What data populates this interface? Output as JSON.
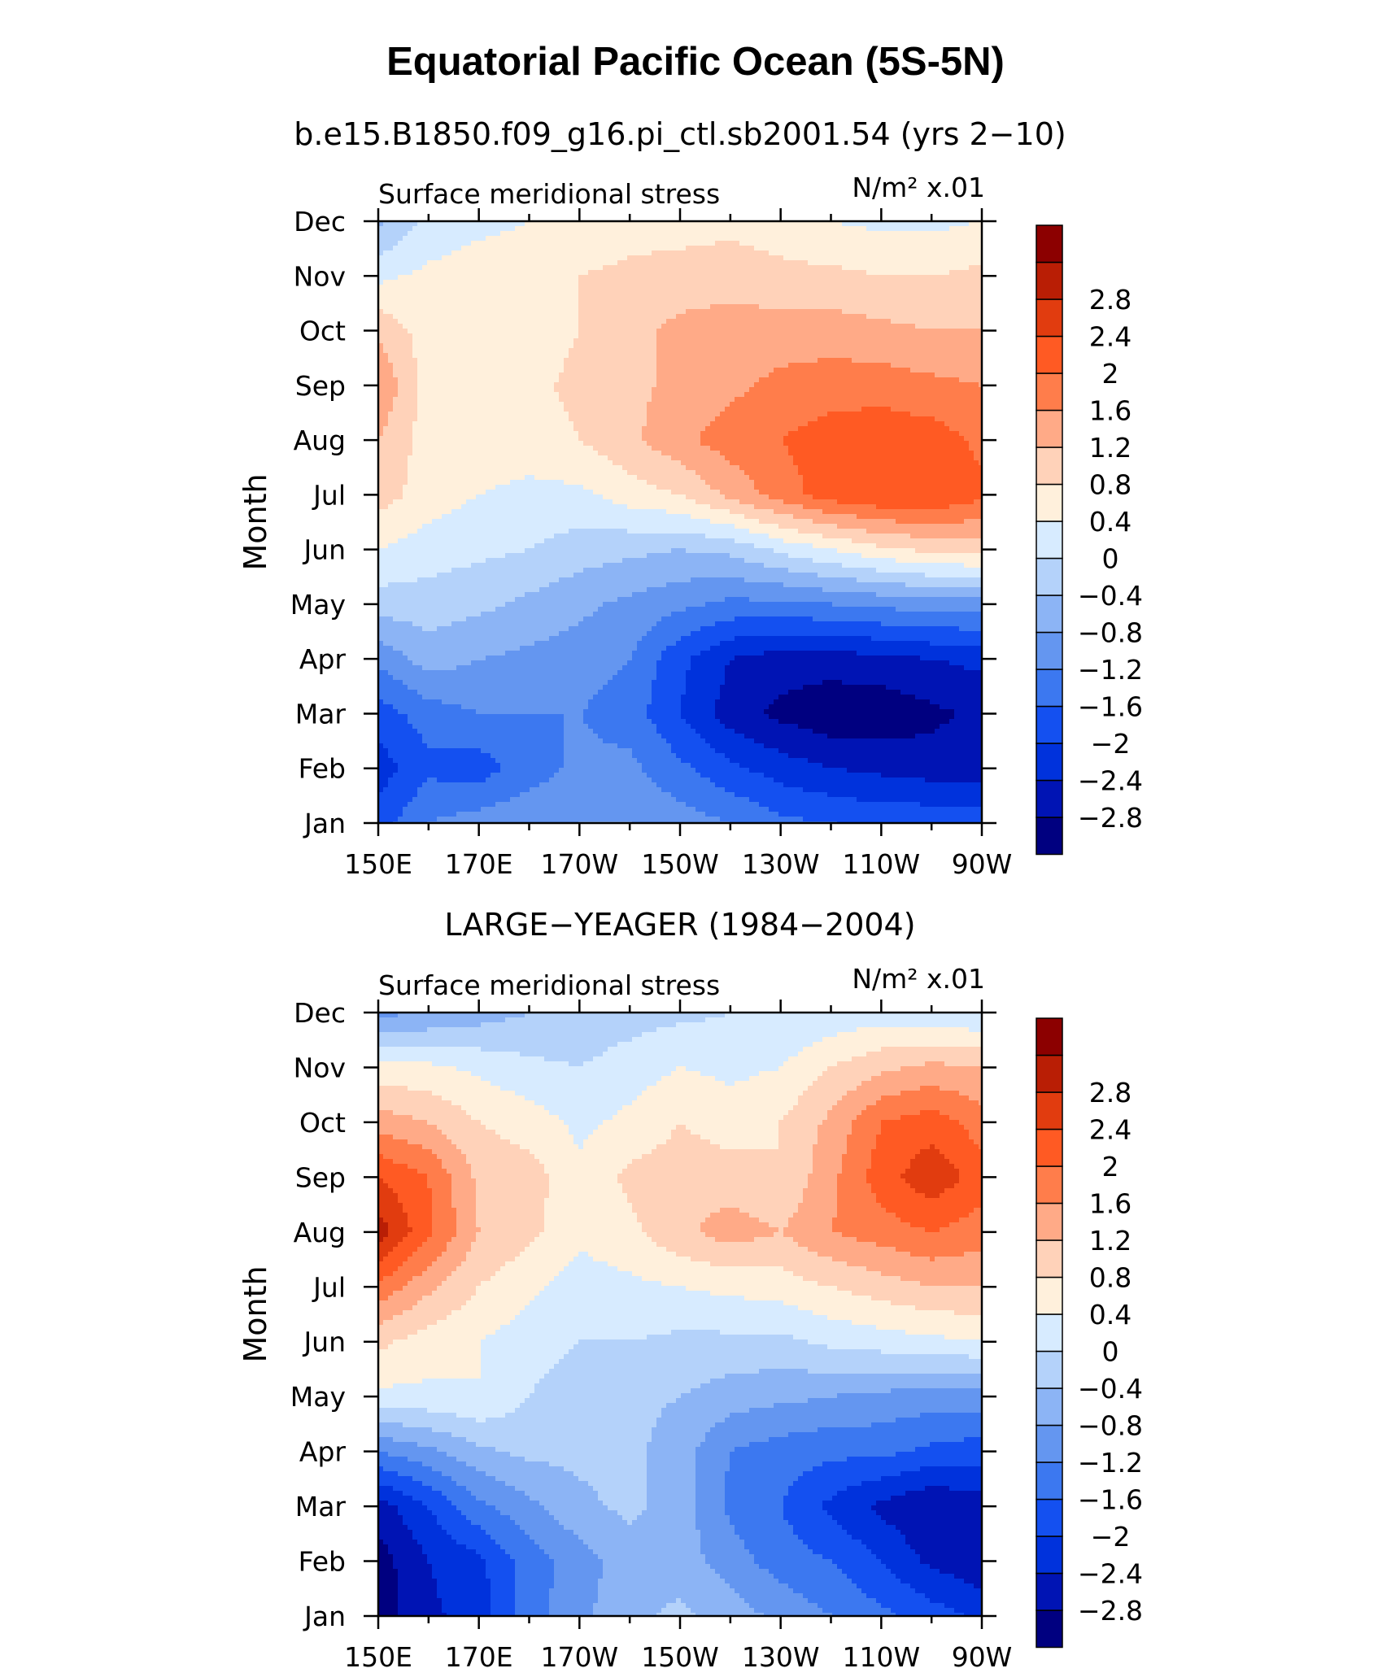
{
  "figure": {
    "title": "Equatorial Pacific Ocean (5S-5N)"
  },
  "palette": [
    "#000080",
    "#0014b4",
    "#0032dc",
    "#1450f0",
    "#3c78f0",
    "#6496f0",
    "#8cb4f5",
    "#b4d2fa",
    "#d7ebff",
    "#fff0dc",
    "#ffd2b9",
    "#ffaa87",
    "#ff7d4b",
    "#ff5a23",
    "#e13c0f",
    "#b91e05",
    "#8c0000"
  ],
  "chart_data": [
    {
      "type": "heatmap",
      "title": "b.e15.B1850.f09_g16.pi_ctl.sb2001.54 (yrs 2−10)",
      "left_label": "Surface meridional stress",
      "units": "N/m² x.01",
      "ylabel": "Month",
      "x_ticks": [
        "150E",
        "170E",
        "170W",
        "150W",
        "130W",
        "110W",
        "90W"
      ],
      "y_ticks": [
        "Jan",
        "Feb",
        "Mar",
        "Apr",
        "May",
        "Jun",
        "Jul",
        "Aug",
        "Sep",
        "Oct",
        "Nov",
        "Dec"
      ],
      "x_lon": [
        150,
        170,
        190,
        210,
        230,
        250,
        270
      ],
      "colorbar_labels": [
        "−2.8",
        "−2.4",
        "−2",
        "−1.6",
        "−1.2",
        "−0.8",
        "−0.4",
        "0",
        "0.4",
        "0.8",
        "1.2",
        "1.6",
        "2",
        "2.4",
        "2.8"
      ],
      "levels": [
        -2.8,
        -2.4,
        -2.0,
        -1.6,
        -1.2,
        -0.8,
        -0.4,
        0,
        0.4,
        0.8,
        1.2,
        1.6,
        2.0,
        2.4,
        2.8
      ],
      "z": [
        [
          -1.8,
          -1.2,
          -1.0,
          -0.9,
          -0.8,
          -0.8,
          -1.0,
          -1.2,
          -1.5,
          -1.6,
          -1.7,
          -1.7,
          -1.7
        ],
        [
          -2.2,
          -1.7,
          -1.8,
          -1.4,
          -1.1,
          -1.1,
          -1.5,
          -1.9,
          -2.2,
          -2.4,
          -2.5,
          -2.6,
          -2.6
        ],
        [
          -1.8,
          -1.4,
          -1.2,
          -1.2,
          -1.2,
          -1.4,
          -2.0,
          -2.6,
          -2.9,
          -3.1,
          -3.1,
          -2.9,
          -2.7
        ],
        [
          -1.1,
          -0.6,
          -0.8,
          -0.9,
          -1.0,
          -1.2,
          -1.9,
          -2.4,
          -2.6,
          -2.6,
          -2.5,
          -2.4,
          -2.3
        ],
        [
          -0.2,
          -0.2,
          -0.3,
          -0.5,
          -0.7,
          -0.9,
          -1.1,
          -1.3,
          -1.3,
          -1.2,
          -1.1,
          -1.0,
          -1.0
        ],
        [
          0.4,
          0.2,
          0.1,
          0.0,
          -0.2,
          -0.3,
          -0.4,
          -0.3,
          0.1,
          0.4,
          0.7,
          0.9,
          1.0
        ],
        [
          1.0,
          0.6,
          0.4,
          0.3,
          0.3,
          0.6,
          0.8,
          1.3,
          1.8,
          2.2,
          2.4,
          2.4,
          2.1
        ],
        [
          1.2,
          0.6,
          0.6,
          0.6,
          0.8,
          1.1,
          1.5,
          1.8,
          2.0,
          2.2,
          2.3,
          2.2,
          1.9
        ],
        [
          1.6,
          0.6,
          0.6,
          0.7,
          0.9,
          1.1,
          1.3,
          1.5,
          1.7,
          1.8,
          1.8,
          1.7,
          1.6
        ],
        [
          1.1,
          0.6,
          0.6,
          0.6,
          0.8,
          1.1,
          1.3,
          1.4,
          1.4,
          1.4,
          1.3,
          1.2,
          1.2
        ],
        [
          0.3,
          0.5,
          0.6,
          0.6,
          0.8,
          0.9,
          1.0,
          1.0,
          0.9,
          0.9,
          0.8,
          0.8,
          0.9
        ],
        [
          -0.5,
          0.1,
          0.3,
          0.4,
          0.5,
          0.6,
          0.6,
          0.7,
          0.6,
          0.4,
          0.3,
          0.3,
          0.4
        ]
      ]
    },
    {
      "type": "heatmap",
      "title": "LARGE−YEAGER (1984−2004)",
      "left_label": "Surface meridional stress",
      "units": "N/m² x.01",
      "ylabel": "Month",
      "x_ticks": [
        "150E",
        "170E",
        "170W",
        "150W",
        "130W",
        "110W",
        "90W"
      ],
      "y_ticks": [
        "Jan",
        "Feb",
        "Mar",
        "Apr",
        "May",
        "Jun",
        "Jul",
        "Aug",
        "Sep",
        "Oct",
        "Nov",
        "Dec"
      ],
      "x_lon": [
        150,
        170,
        190,
        210,
        230,
        250,
        270
      ],
      "colorbar_labels": [
        "−2.8",
        "−2.4",
        "−2",
        "−1.6",
        "−1.2",
        "−0.8",
        "−0.4",
        "0",
        "0.4",
        "0.8",
        "1.2",
        "1.6",
        "2",
        "2.4",
        "2.8"
      ],
      "levels": [
        -2.8,
        -2.4,
        -2.0,
        -1.6,
        -1.2,
        -0.8,
        -0.4,
        0,
        0.4,
        0.8,
        1.2,
        1.6,
        2.0,
        2.4,
        2.8
      ],
      "z": [
        [
          -3.0,
          -2.5,
          -2.2,
          -1.4,
          -0.9,
          -0.5,
          -0.3,
          -0.6,
          -0.9,
          -1.2,
          -1.5,
          -1.8,
          -2.1
        ],
        [
          -3.0,
          -2.4,
          -2.1,
          -1.4,
          -1.0,
          -0.6,
          -0.6,
          -1.0,
          -1.4,
          -1.6,
          -2.0,
          -2.5,
          -2.7
        ],
        [
          -2.6,
          -2.0,
          -1.3,
          -0.9,
          -0.5,
          -0.3,
          -0.6,
          -1.3,
          -1.6,
          -2.1,
          -2.5,
          -2.8,
          -2.6
        ],
        [
          -1.2,
          -0.9,
          -0.5,
          -0.3,
          -0.3,
          -0.3,
          -0.6,
          -1.2,
          -1.4,
          -1.5,
          -1.5,
          -1.7,
          -1.8
        ],
        [
          0.3,
          0.3,
          0.4,
          0.0,
          -0.3,
          -0.3,
          -0.4,
          -0.6,
          -0.7,
          -0.8,
          -0.9,
          -1.0,
          -1.0
        ],
        [
          0.9,
          0.6,
          0.4,
          0.2,
          0.0,
          0.0,
          -0.1,
          -0.1,
          -0.1,
          0.1,
          0.2,
          0.3,
          0.4
        ],
        [
          1.9,
          1.3,
          0.8,
          0.5,
          0.2,
          0.3,
          0.4,
          0.5,
          0.6,
          0.8,
          1.0,
          1.2,
          1.2
        ],
        [
          3.0,
          2.1,
          1.2,
          0.9,
          0.5,
          0.7,
          1.1,
          1.4,
          1.2,
          1.6,
          1.8,
          2.0,
          1.8
        ],
        [
          2.4,
          2.0,
          1.1,
          1.0,
          0.5,
          0.9,
          1.0,
          1.0,
          0.8,
          1.5,
          2.2,
          2.7,
          2.2
        ],
        [
          1.4,
          1.2,
          0.8,
          0.6,
          0.3,
          0.5,
          0.8,
          0.6,
          0.8,
          1.3,
          2.0,
          2.2,
          1.8
        ],
        [
          0.5,
          0.5,
          0.3,
          0.1,
          0.0,
          0.2,
          0.4,
          0.3,
          0.4,
          0.8,
          1.1,
          1.3,
          1.2
        ],
        [
          -0.9,
          -0.8,
          -0.6,
          -0.4,
          -0.3,
          -0.2,
          -0.1,
          0.0,
          0.0,
          0.1,
          0.2,
          0.1,
          0.0
        ]
      ]
    }
  ]
}
